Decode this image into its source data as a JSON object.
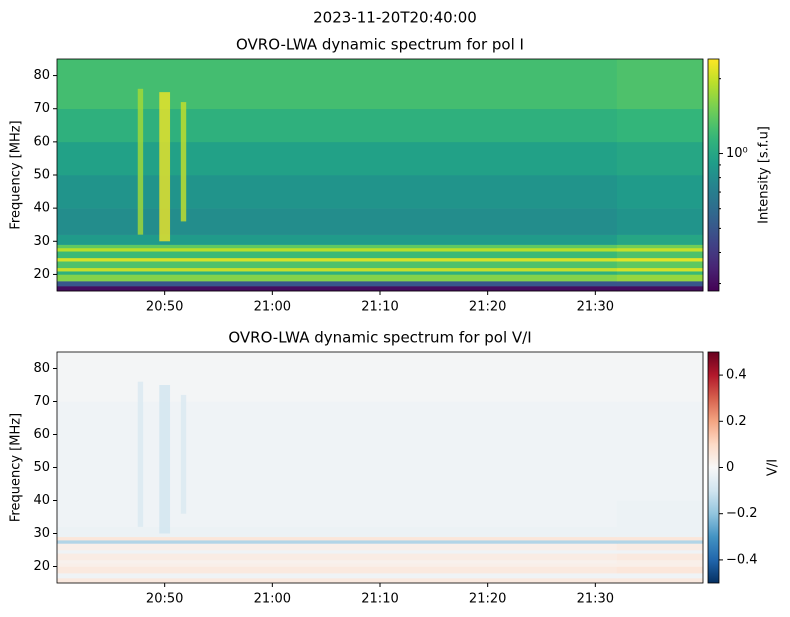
{
  "suptitle": "2023-11-20T20:40:00",
  "chart_data": [
    {
      "type": "heatmap",
      "title": "OVRO-LWA dynamic spectrum for pol I",
      "ylabel": "Frequency [MHz]",
      "xlim": [
        "20:40",
        "21:40"
      ],
      "xticks": [
        "20:50",
        "21:00",
        "21:10",
        "21:20",
        "21:30"
      ],
      "ylim": [
        15,
        85
      ],
      "yticks": [
        20,
        30,
        40,
        50,
        60,
        70,
        80
      ],
      "x_bins": [
        "20:40",
        "21:32",
        "21:40"
      ],
      "y_bins": [
        15,
        16.5,
        18,
        20,
        21,
        22,
        24,
        25,
        27,
        28,
        29,
        32,
        40,
        50,
        60,
        70,
        85
      ],
      "values": [
        [
          0.3,
          0.3
        ],
        [
          0.5,
          0.5
        ],
        [
          1.6,
          1.7
        ],
        [
          1.1,
          1.2
        ],
        [
          2.0,
          2.1
        ],
        [
          1.3,
          1.4
        ],
        [
          2.1,
          2.2
        ],
        [
          1.2,
          1.3
        ],
        [
          1.9,
          2.0
        ],
        [
          1.4,
          1.5
        ],
        [
          0.9,
          1.0
        ],
        [
          0.8,
          0.85
        ],
        [
          0.85,
          0.9
        ],
        [
          0.95,
          1.0
        ],
        [
          1.1,
          1.15
        ],
        [
          1.25,
          1.3
        ]
      ],
      "bursts": [
        {
          "x": [
            "20:47.5",
            "20:48"
          ],
          "y": [
            32,
            76
          ],
          "value": 1.8
        },
        {
          "x": [
            "20:49.5",
            "20:50.5"
          ],
          "y": [
            30,
            75
          ],
          "value": 2.3
        },
        {
          "x": [
            "20:51.5",
            "20:52"
          ],
          "y": [
            36,
            72
          ],
          "value": 2.0
        }
      ],
      "colorbar": {
        "label": "Intensity [s.f.u]",
        "scale": "log",
        "colormap": "viridis",
        "lim": [
          0.28,
          2.4
        ],
        "ticks": [
          {
            "value": 1,
            "label": "10⁰"
          }
        ]
      }
    },
    {
      "type": "heatmap",
      "title": "OVRO-LWA dynamic spectrum for pol V/I",
      "ylabel": "Frequency [MHz]",
      "xlim": [
        "20:40",
        "21:40"
      ],
      "xticks": [
        "20:50",
        "21:00",
        "21:10",
        "21:20",
        "21:30"
      ],
      "ylim": [
        15,
        85
      ],
      "yticks": [
        20,
        30,
        40,
        50,
        60,
        70,
        80
      ],
      "x_bins": [
        "20:40",
        "21:32",
        "21:40"
      ],
      "y_bins": [
        15,
        16.5,
        18,
        20,
        21,
        22,
        24,
        25,
        27,
        28,
        29,
        32,
        40,
        50,
        60,
        70,
        85
      ],
      "values": [
        [
          0.05,
          0.05
        ],
        [
          -0.02,
          -0.02
        ],
        [
          0.05,
          0.06
        ],
        [
          0.03,
          0.03
        ],
        [
          0.02,
          0.03
        ],
        [
          0.04,
          0.05
        ],
        [
          -0.02,
          -0.02
        ],
        [
          0.03,
          0.04
        ],
        [
          -0.15,
          -0.15
        ],
        [
          0.06,
          0.06
        ],
        [
          -0.03,
          -0.03
        ],
        [
          -0.02,
          -0.03
        ],
        [
          -0.02,
          -0.02
        ],
        [
          -0.02,
          -0.02
        ],
        [
          -0.02,
          -0.02
        ],
        [
          -0.01,
          -0.01
        ]
      ],
      "bursts": [
        {
          "x": [
            "20:47.5",
            "20:48"
          ],
          "y": [
            32,
            76
          ],
          "value": -0.08
        },
        {
          "x": [
            "20:49.5",
            "20:50.5"
          ],
          "y": [
            30,
            75
          ],
          "value": -0.1
        },
        {
          "x": [
            "20:51.5",
            "20:52"
          ],
          "y": [
            36,
            72
          ],
          "value": -0.08
        }
      ],
      "colorbar": {
        "label": "V/I",
        "scale": "linear",
        "colormap": "RdBu_r",
        "lim": [
          -0.5,
          0.5
        ],
        "ticks": [
          {
            "value": -0.4,
            "label": "−0.4"
          },
          {
            "value": -0.2,
            "label": "−0.2"
          },
          0.0,
          0.2,
          0.4
        ]
      }
    }
  ]
}
